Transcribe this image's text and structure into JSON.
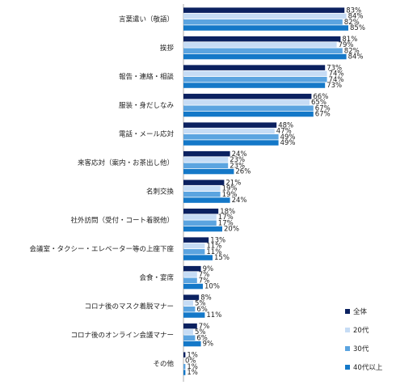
{
  "chart_data": {
    "type": "bar",
    "orientation": "horizontal",
    "title": "",
    "xlabel": "",
    "ylabel": "",
    "xlim": [
      0,
      100
    ],
    "grid": false,
    "legend_position": "bottom-right",
    "value_suffix": "%",
    "categories": [
      "言葉遣い（敬語）",
      "挨拶",
      "報告・連絡・相談",
      "服装・身だしなみ",
      "電話・メール応対",
      "来客応対（案内・お茶出し他）",
      "名刺交換",
      "社外訪問（受付・コート着脱他）",
      "会議室・タクシー・エレベーター等の上座下座",
      "会食・宴席",
      "コロナ後のマスク着脱マナー",
      "コロナ後のオンライン会議マナー",
      "その他"
    ],
    "series": [
      {
        "name": "全体",
        "color": "#0b2160",
        "values": [
          83,
          81,
          73,
          66,
          48,
          24,
          21,
          18,
          13,
          9,
          8,
          7,
          1
        ]
      },
      {
        "name": "20代",
        "color": "#c6dcf5",
        "values": [
          84,
          79,
          74,
          65,
          47,
          23,
          19,
          17,
          11,
          7,
          5,
          5,
          0
        ]
      },
      {
        "name": "30代",
        "color": "#5ba4e0",
        "values": [
          82,
          82,
          74,
          67,
          49,
          23,
          19,
          17,
          11,
          7,
          6,
          6,
          1
        ]
      },
      {
        "name": "40代以上",
        "color": "#1478c8",
        "values": [
          85,
          84,
          73,
          67,
          49,
          26,
          24,
          20,
          15,
          10,
          11,
          9,
          1
        ]
      }
    ]
  }
}
